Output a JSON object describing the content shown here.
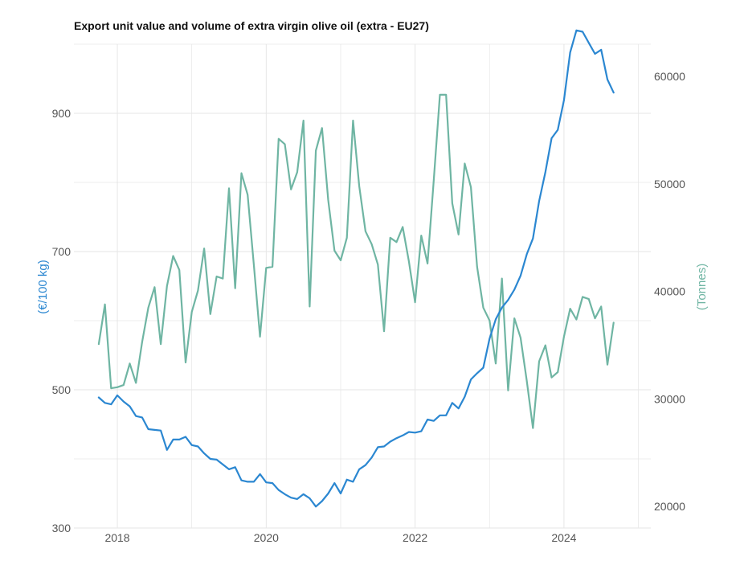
{
  "chart_data": {
    "type": "line",
    "title": "Export unit value and volume of extra virgin olive oil (extra - EU27)",
    "xlabel": "",
    "y_left_label": "(€/100 kg)",
    "y_right_label": "(Tonnes)",
    "y_left_ticks": [
      "300",
      "500",
      "700",
      "900"
    ],
    "y_right_ticks": [
      "20000",
      "30000",
      "40000",
      "50000",
      "60000"
    ],
    "x_ticks": [
      "2018",
      "2020",
      "2022",
      "2024"
    ],
    "y_left_range": [
      300,
      1000
    ],
    "y_right_range": [
      18000,
      63000
    ],
    "x_range": [
      "2017-06",
      "2025-03"
    ],
    "grid": true,
    "colors": {
      "unit_value": "#2b87d1",
      "volume": "#6fb5a3",
      "grid": "#e6e6e6",
      "text": "#555555"
    },
    "series": [
      {
        "name": "(€/100 kg)",
        "axis": "left",
        "x": [
          "2017-10",
          "2017-11",
          "2017-12",
          "2018-01",
          "2018-02",
          "2018-03",
          "2018-04",
          "2018-05",
          "2018-06",
          "2018-07",
          "2018-08",
          "2018-09",
          "2018-10",
          "2018-11",
          "2018-12",
          "2019-01",
          "2019-02",
          "2019-03",
          "2019-04",
          "2019-05",
          "2019-06",
          "2019-07",
          "2019-08",
          "2019-09",
          "2019-10",
          "2019-11",
          "2019-12",
          "2020-01",
          "2020-02",
          "2020-03",
          "2020-04",
          "2020-05",
          "2020-06",
          "2020-07",
          "2020-08",
          "2020-09",
          "2020-10",
          "2020-11",
          "2020-12",
          "2021-01",
          "2021-02",
          "2021-03",
          "2021-04",
          "2021-05",
          "2021-06",
          "2021-07",
          "2021-08",
          "2021-09",
          "2021-10",
          "2021-11",
          "2021-12",
          "2022-01",
          "2022-02",
          "2022-03",
          "2022-04",
          "2022-05",
          "2022-06",
          "2022-07",
          "2022-08",
          "2022-09",
          "2022-10",
          "2022-11",
          "2022-12",
          "2023-01",
          "2023-02",
          "2023-03",
          "2023-04",
          "2023-05",
          "2023-06",
          "2023-07",
          "2023-08",
          "2023-09",
          "2023-10",
          "2023-11",
          "2023-12",
          "2024-01",
          "2024-02",
          "2024-03",
          "2024-04",
          "2024-05",
          "2024-06",
          "2024-07",
          "2024-08",
          "2024-09"
        ],
        "values": [
          489,
          481,
          479,
          492,
          483,
          476,
          462,
          460,
          443,
          442,
          441,
          413,
          428,
          428,
          432,
          420,
          418,
          408,
          400,
          399,
          392,
          385,
          388,
          369,
          367,
          367,
          378,
          366,
          365,
          355,
          349,
          344,
          342,
          349,
          343,
          331,
          339,
          350,
          365,
          350,
          370,
          367,
          385,
          391,
          402,
          417,
          418,
          425,
          430,
          434,
          439,
          438,
          440,
          457,
          455,
          463,
          463,
          481,
          473,
          490,
          515,
          524,
          532,
          574,
          602,
          619,
          630,
          645,
          665,
          696,
          719,
          773,
          815,
          864,
          876,
          919,
          988,
          1020,
          1018,
          1002,
          986,
          992,
          949,
          930
        ]
      },
      {
        "name": "(Tonnes)",
        "axis": "right",
        "x": [
          "2017-10",
          "2017-11",
          "2017-12",
          "2018-01",
          "2018-02",
          "2018-03",
          "2018-04",
          "2018-05",
          "2018-06",
          "2018-07",
          "2018-08",
          "2018-09",
          "2018-10",
          "2018-11",
          "2018-12",
          "2019-01",
          "2019-02",
          "2019-03",
          "2019-04",
          "2019-05",
          "2019-06",
          "2019-07",
          "2019-08",
          "2019-09",
          "2019-10",
          "2019-11",
          "2019-12",
          "2020-01",
          "2020-02",
          "2020-03",
          "2020-04",
          "2020-05",
          "2020-06",
          "2020-07",
          "2020-08",
          "2020-09",
          "2020-10",
          "2020-11",
          "2020-12",
          "2021-01",
          "2021-02",
          "2021-03",
          "2021-04",
          "2021-05",
          "2021-06",
          "2021-07",
          "2021-08",
          "2021-09",
          "2021-10",
          "2021-11",
          "2021-12",
          "2022-01",
          "2022-02",
          "2022-03",
          "2022-04",
          "2022-05",
          "2022-06",
          "2022-07",
          "2022-08",
          "2022-09",
          "2022-10",
          "2022-11",
          "2022-12",
          "2023-01",
          "2023-02",
          "2023-03",
          "2023-04",
          "2023-05",
          "2023-06",
          "2023-07",
          "2023-08",
          "2023-09",
          "2023-10",
          "2023-11",
          "2023-12",
          "2024-01",
          "2024-02",
          "2024-03",
          "2024-04",
          "2024-05",
          "2024-06",
          "2024-07",
          "2024-08",
          "2024-09"
        ],
        "values": [
          35100,
          38800,
          31000,
          31100,
          31300,
          33300,
          31500,
          35300,
          38500,
          40400,
          35100,
          40500,
          43300,
          42000,
          33400,
          38100,
          40100,
          44000,
          37900,
          41400,
          41200,
          49600,
          40300,
          51000,
          49000,
          42500,
          35800,
          42200,
          42300,
          54200,
          53700,
          49500,
          51100,
          55900,
          38600,
          53100,
          55200,
          48500,
          43800,
          42900,
          45000,
          55900,
          49800,
          45600,
          44400,
          42500,
          36300,
          45000,
          44600,
          46000,
          42800,
          39000,
          45200,
          42600,
          50300,
          58300,
          58300,
          48200,
          45300,
          51900,
          49700,
          42300,
          38500,
          37300,
          33300,
          41200,
          30800,
          37500,
          35700,
          31700,
          27300,
          33500,
          35000,
          32000,
          32500,
          35800,
          38400,
          37400,
          39500,
          39300,
          37500,
          38600,
          33200,
          37100
        ]
      }
    ]
  }
}
